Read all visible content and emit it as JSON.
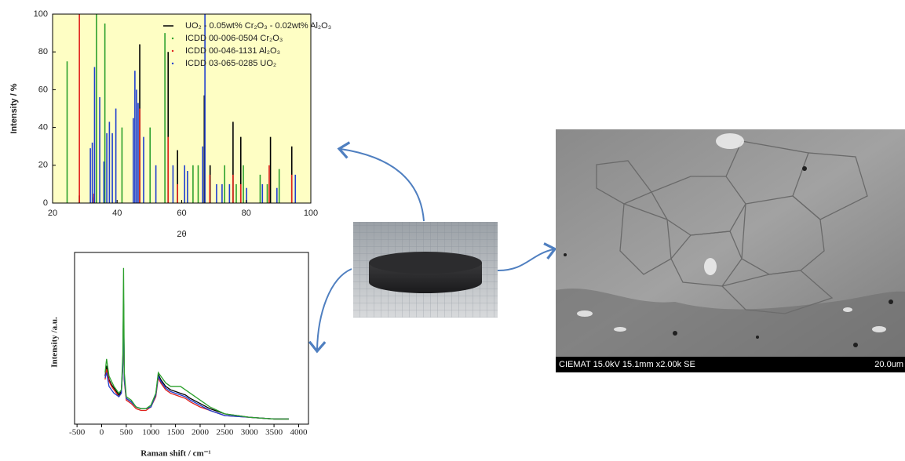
{
  "chart_data": [
    {
      "type": "stick",
      "ylabel": "Intensity / %",
      "xlabel": "2θ",
      "xlim": [
        20,
        100
      ],
      "ylim": [
        0,
        100
      ],
      "xticks": [
        20,
        40,
        60,
        80,
        100
      ],
      "yticks": [
        0,
        20,
        40,
        60,
        80,
        100
      ],
      "background": "#fefec4",
      "series": [
        {
          "name": "UO₂ - 0.05wt% Cr₂O₃ - 0.02wt% Al₂O₃",
          "color": "#000000",
          "x": [
            28.3,
            32.8,
            47.0,
            55.8,
            58.7,
            67.0,
            68.8,
            75.9,
            78.3,
            87.5,
            94.1
          ],
          "values": [
            4,
            3,
            84,
            80,
            28,
            57,
            20,
            43,
            35,
            35,
            30
          ]
        },
        {
          "name": "ICDD 00-006-0504 Cr₂O₃",
          "color": "#2ca02c",
          "x": [
            24.5,
            33.6,
            36.2,
            41.5,
            50.2,
            54.8,
            63.5,
            65.1,
            73.3,
            76.9,
            79.1,
            84.3,
            86.5,
            90.2
          ],
          "values": [
            75,
            100,
            95,
            40,
            40,
            90,
            20,
            20,
            20,
            10,
            20,
            15,
            10,
            18
          ]
        },
        {
          "name": "ICDD 00-046-1131 Al₂O₃",
          "color": "#e0201b",
          "x": [
            28.3,
            32.8,
            47.0,
            55.8,
            58.7,
            68.7,
            75.9,
            78.3,
            87.1,
            94.1
          ],
          "values": [
            100,
            5,
            50,
            35,
            10,
            15,
            15,
            10,
            20,
            15
          ]
        },
        {
          "name": "ICDD 03-065-0285 UO₂",
          "color": "#1f3fd0",
          "x": [
            31.7,
            32.3,
            33.0,
            34.6,
            35.9,
            36.8,
            37.6,
            38.5,
            39.6,
            45.0,
            45.5,
            46.0,
            46.5,
            48.2,
            52.0,
            57.3,
            60.9,
            61.8,
            66.5,
            67.2,
            70.8,
            72.5,
            74.8,
            80.1,
            85.0,
            89.5,
            95.2
          ],
          "values": [
            29,
            32,
            72,
            56,
            22,
            37,
            43,
            37,
            50,
            45,
            70,
            60,
            53,
            35,
            20,
            20,
            20,
            17,
            30,
            100,
            10,
            10,
            10,
            8,
            10,
            8,
            15
          ]
        }
      ]
    },
    {
      "type": "line",
      "ylabel": "Intensity /a.u.",
      "xlabel": "Raman shift / cm⁻¹",
      "xlim": [
        -550,
        4200
      ],
      "ylim": [
        0,
        100
      ],
      "xticks": [
        -500,
        0,
        500,
        1000,
        1500,
        2000,
        2500,
        3000,
        3500,
        4000
      ],
      "x": [
        70,
        100,
        150,
        200,
        250,
        300,
        350,
        400,
        430,
        445,
        460,
        500,
        600,
        700,
        800,
        900,
        1000,
        1100,
        1150,
        1200,
        1300,
        1400,
        1500,
        1600,
        1700,
        1800,
        2000,
        2200,
        2500,
        3000,
        3500,
        3800
      ],
      "series": [
        {
          "color": "#000000",
          "values": [
            28,
            34,
            26,
            23,
            21,
            19,
            17,
            19,
            35,
            70,
            27,
            15,
            13,
            10,
            9,
            9,
            10,
            17,
            29,
            26,
            22,
            20,
            19,
            18,
            17,
            15,
            12,
            9,
            6,
            4,
            3,
            3
          ]
        },
        {
          "color": "#e0201b",
          "values": [
            26,
            32,
            25,
            22,
            20,
            18,
            16,
            18,
            33,
            65,
            25,
            14,
            12,
            9,
            8,
            8,
            10,
            16,
            27,
            24,
            20,
            18,
            17,
            16,
            15,
            13,
            10,
            8,
            5,
            4,
            3,
            3
          ]
        },
        {
          "color": "#1f3fd0",
          "values": [
            27,
            30,
            22,
            20,
            18,
            17,
            16,
            18,
            34,
            72,
            26,
            15,
            13,
            10,
            9,
            9,
            10,
            17,
            28,
            25,
            21,
            19,
            18,
            17,
            16,
            14,
            11,
            8,
            5,
            4,
            3,
            3
          ]
        },
        {
          "color": "#2ca02c",
          "values": [
            30,
            38,
            28,
            25,
            22,
            20,
            18,
            20,
            40,
            91,
            30,
            16,
            14,
            10,
            9,
            9,
            11,
            18,
            30,
            28,
            24,
            22,
            22,
            22,
            20,
            18,
            14,
            10,
            6,
            4,
            3,
            3
          ]
        }
      ]
    }
  ],
  "sem_image": {
    "caption": "CIEMAT 15.0kV 15.1mm x2.00k SE",
    "scale": "20.0um"
  }
}
